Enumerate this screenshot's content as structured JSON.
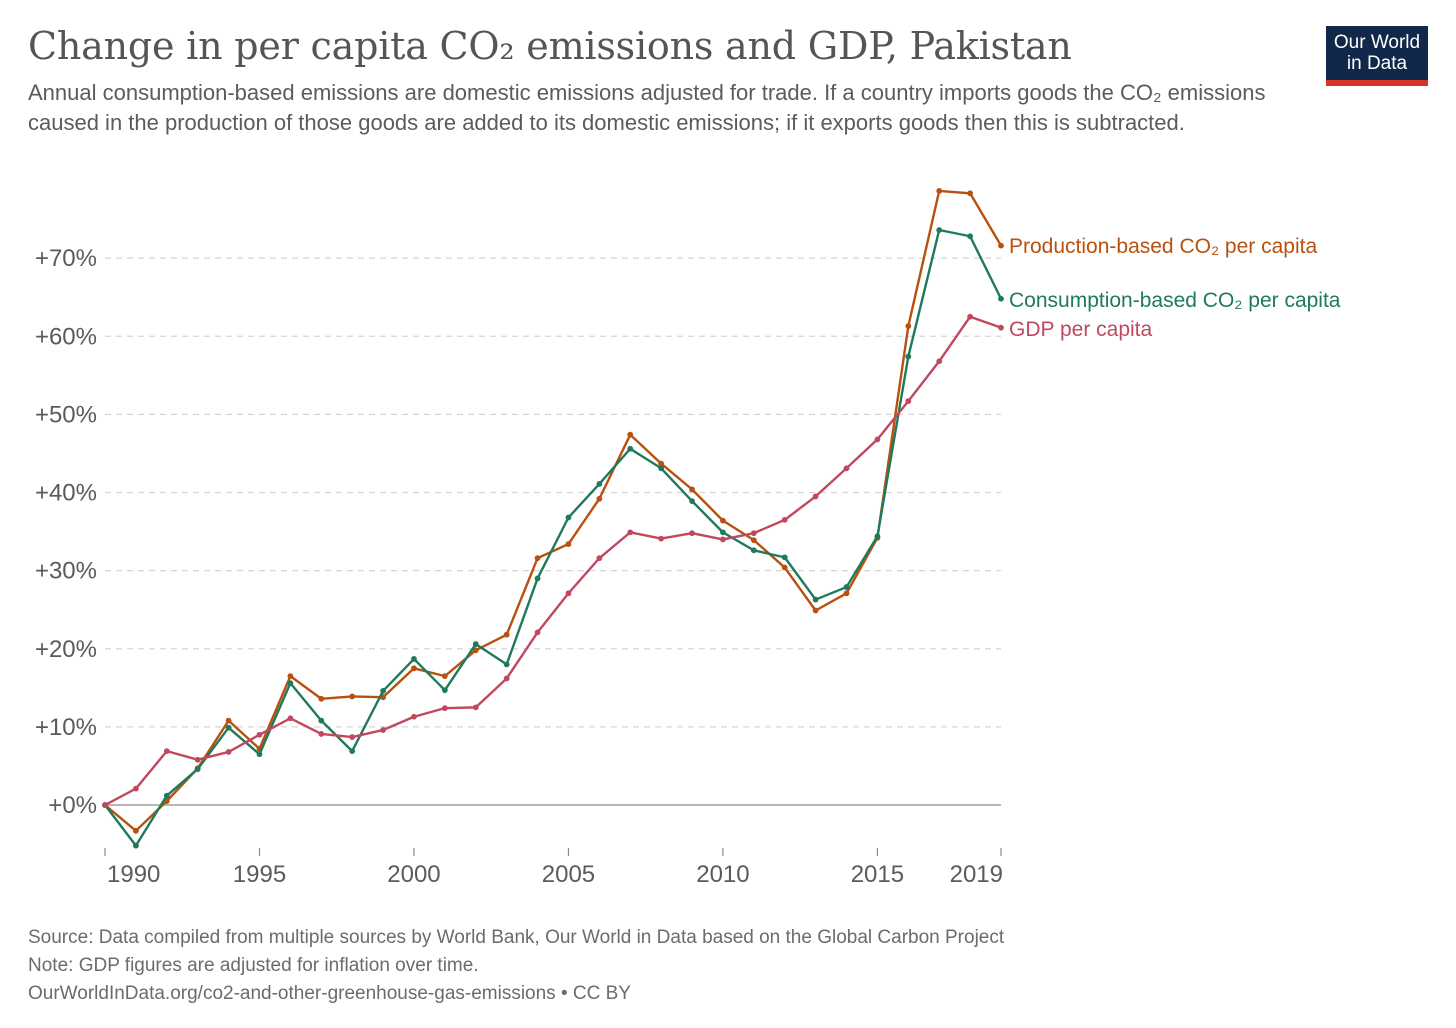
{
  "header": {
    "title": "Change in per capita CO₂ emissions and GDP, Pakistan",
    "subtitle": "Annual consumption-based emissions are domestic emissions adjusted for trade. If a country imports goods the CO₂ emissions caused in the production of those goods are added to its domestic emissions; if it exports goods then this is subtracted.",
    "logo_line1": "Our World",
    "logo_line2": "in Data"
  },
  "footer": {
    "source": "Source: Data compiled from multiple sources by World Bank, Our World in Data based on the Global Carbon Project",
    "note": "Note: GDP figures are adjusted for inflation over time.",
    "url": "OurWorldInData.org/co2-and-other-greenhouse-gas-emissions • CC BY"
  },
  "colors": {
    "production": "#b8510f",
    "consumption": "#1f7a5c",
    "gdp": "#c0485f",
    "grid": "#d6d6d6",
    "axis": "#8a8a8a",
    "logo_bg": "#12284a",
    "logo_bar": "#d8332a"
  },
  "chart_data": {
    "type": "line",
    "x": [
      1990,
      1991,
      1992,
      1993,
      1994,
      1995,
      1996,
      1997,
      1998,
      1999,
      2000,
      2001,
      2002,
      2003,
      2004,
      2005,
      2006,
      2007,
      2008,
      2009,
      2010,
      2011,
      2012,
      2013,
      2014,
      2015,
      2016,
      2017,
      2018,
      2019
    ],
    "xticks": [
      1990,
      1995,
      2000,
      2005,
      2010,
      2015,
      2019
    ],
    "ylim": [
      -5.5,
      80
    ],
    "yticks": [
      0,
      10,
      20,
      30,
      40,
      50,
      60,
      70
    ],
    "ytick_labels": [
      "+0%",
      "+10%",
      "+20%",
      "+30%",
      "+40%",
      "+50%",
      "+60%",
      "+70%"
    ],
    "grid": true,
    "legend": "right, labels at line ends",
    "series": [
      {
        "name": "Production-based CO₂ per capita",
        "color": "#b8510f",
        "values": [
          0,
          -3.3,
          0.5,
          4.7,
          10.8,
          7.2,
          16.5,
          13.6,
          13.9,
          13.8,
          17.5,
          16.5,
          19.8,
          21.8,
          31.6,
          33.4,
          39.2,
          47.4,
          43.7,
          40.4,
          36.4,
          33.9,
          30.4,
          24.9,
          27.1,
          34.2,
          61.3,
          78.6,
          78.3,
          71.6
        ]
      },
      {
        "name": "Consumption-based CO₂ per capita",
        "color": "#1f7a5c",
        "values": [
          0,
          -5.2,
          1.2,
          4.6,
          9.9,
          6.5,
          15.6,
          10.8,
          6.9,
          14.6,
          18.7,
          14.7,
          20.6,
          18.0,
          29.0,
          36.8,
          41.1,
          45.6,
          43.1,
          38.9,
          34.9,
          32.6,
          31.7,
          26.3,
          27.9,
          34.4,
          57.4,
          73.6,
          72.8,
          64.8
        ]
      },
      {
        "name": "GDP per capita",
        "color": "#c0485f",
        "values": [
          0,
          2.1,
          6.9,
          5.8,
          6.8,
          9.0,
          11.1,
          9.1,
          8.7,
          9.6,
          11.3,
          12.4,
          12.5,
          16.2,
          22.1,
          27.1,
          31.6,
          34.9,
          34.1,
          34.8,
          34.0,
          34.8,
          36.5,
          39.5,
          43.1,
          46.8,
          51.7,
          56.8,
          62.5,
          61.1
        ]
      }
    ]
  }
}
